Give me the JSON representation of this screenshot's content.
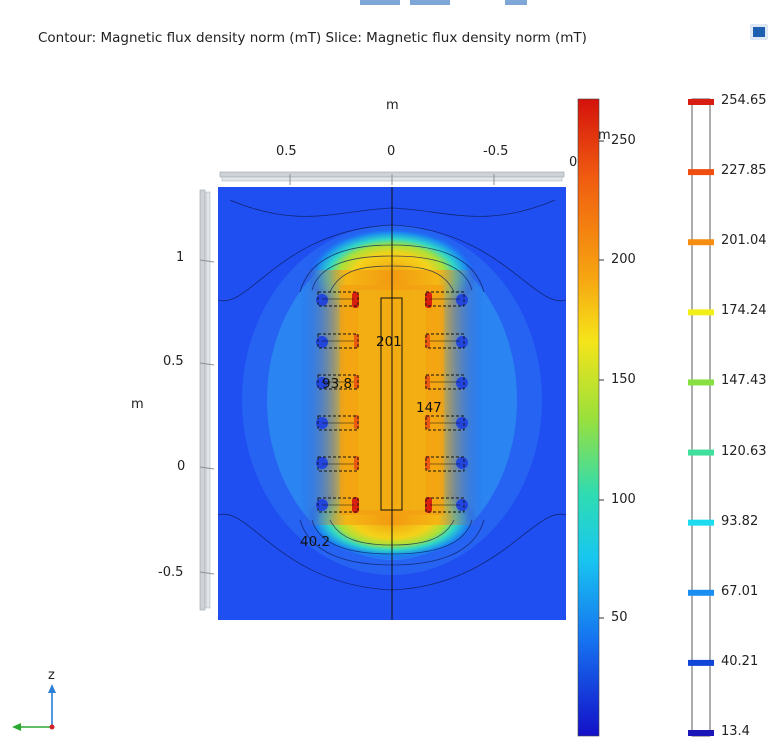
{
  "title": "Contour: Magnetic flux density norm (mT)  Slice: Magnetic flux density norm (mT)",
  "toolbar": {
    "camera_icon": "camera-icon"
  },
  "axes": {
    "top_unit": "m",
    "top_ticks": [
      "0.5",
      "0",
      "-0.5",
      "0"
    ],
    "left_unit": "m",
    "left_ticks": [
      "1",
      "0.5",
      "0",
      "-0.5"
    ],
    "axis_triad_z": "z"
  },
  "contour_labels": [
    "201",
    "93.8",
    "147",
    "40.2"
  ],
  "slice_colorbar": {
    "unit": "m",
    "ticks": [
      "250",
      "200",
      "150",
      "100",
      "50"
    ]
  },
  "contour_colorbar": {
    "levels": [
      "254.65",
      "227.85",
      "201.04",
      "174.24",
      "147.43",
      "120.63",
      "93.82",
      "67.01",
      "40.21",
      "13.4"
    ],
    "colors": [
      "#d81e12",
      "#ee4f10",
      "#f58d12",
      "#f2ee1a",
      "#86e040",
      "#3fe09c",
      "#1edcf0",
      "#1a8ef0",
      "#1246d8",
      "#1a16b8"
    ]
  },
  "colors": {
    "background_field": "#1f4ff0",
    "accent": "#1f5fb0"
  }
}
